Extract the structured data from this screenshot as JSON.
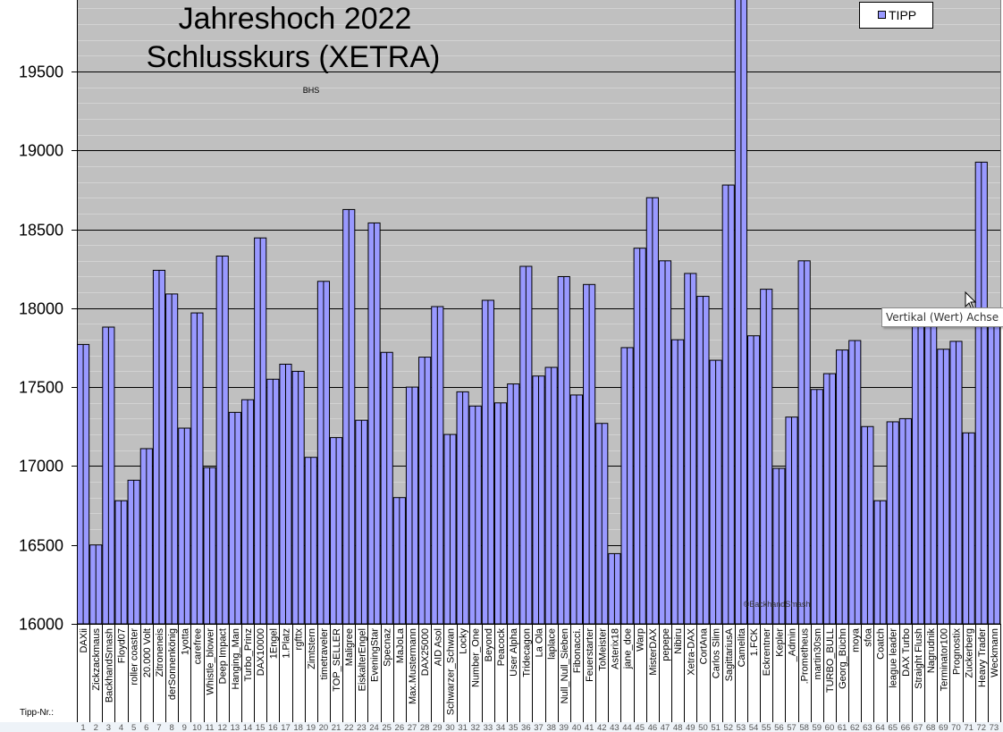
{
  "chart_data": {
    "type": "bar",
    "title": [
      "Jahreshoch 2022",
      "Schlusskurs (XETRA)"
    ],
    "annotation": "BHS",
    "watermark": "©BackhandSmash",
    "legend": {
      "entries": [
        "TIPP"
      ],
      "placement": "top-right"
    },
    "xlabel": "Tipp-Nr.:",
    "ylabel": "",
    "ylim": [
      16000,
      20000
    ],
    "yticks": [
      16000,
      16500,
      17000,
      17500,
      18000,
      18500,
      19000,
      19500
    ],
    "grid": true,
    "bar_color": "#9999ff",
    "plot_bg": "#c0c0c0",
    "numbers": [
      1,
      2,
      3,
      4,
      5,
      6,
      7,
      8,
      9,
      10,
      11,
      12,
      13,
      14,
      15,
      16,
      17,
      18,
      19,
      20,
      21,
      22,
      23,
      24,
      25,
      26,
      27,
      28,
      29,
      30,
      31,
      32,
      33,
      34,
      35,
      36,
      37,
      38,
      39,
      40,
      41,
      42,
      43,
      44,
      45,
      46,
      47,
      48,
      49,
      50,
      51,
      52,
      53,
      54,
      55,
      56,
      57,
      58,
      59,
      60,
      61,
      62,
      63,
      64,
      65,
      66,
      67,
      68,
      69,
      70,
      71,
      72,
      73
    ],
    "categories": [
      "DAXii",
      "Zickzackmaus",
      "BackhandSmash",
      "Floyd07",
      "roller coaster",
      "20.000 Volt",
      "Zitroneneis",
      "derSonnenkönig",
      "1yotta",
      "carefree",
      "Whistle_blower",
      "Deep Impact",
      "Hanging_Man",
      "Turbo_Prinz",
      "DAX10000",
      "1Engel",
      "1.Platz",
      "rgfttx",
      "Zimtstern",
      "timetraveler",
      "TOP_SELLER",
      "Maligree",
      "EiskalterEngel",
      "EveningStar",
      "Specnaz",
      "MaJoLa",
      "Max.Mustermann",
      "DAX25000",
      "AID Asol",
      "Schwarzer_Schwan",
      "Locky",
      "Number_One",
      "Beyond",
      "Peacock",
      "User Alpha",
      "Tridecagon",
      "La Ola",
      "laplace",
      "Null_Null_Sieben",
      "Fibonacci.",
      "Feuerstarter",
      "ToMeister",
      "Asterix18",
      "jane_doe",
      "Warp",
      "MisterDAX",
      "pepepe",
      "Nibiru",
      "Xetra-DAX",
      "CortAna",
      "Carlos Slim",
      "SagittariusA",
      "Camelita",
      "1.FCK",
      "Eckrentner",
      "Kepler",
      "_Admin",
      ".Prometheus",
      "martin30sm",
      "TURBO_BULL",
      "Georg_Büchn",
      "moya",
      "sfoa",
      "Coatch",
      "league leader",
      "DAX Turbo",
      "Straight Flush",
      "Nagrudnik",
      "Terminator100",
      "Prognostix",
      "Zuckerberg",
      "Heavy Trader",
      "Weckmann"
    ],
    "series": [
      {
        "name": "TIPP",
        "values": [
          17770,
          16500,
          17880,
          16780,
          16910,
          17110,
          18240,
          18090,
          17240,
          17970,
          16990,
          18330,
          17340,
          17420,
          18445,
          17550,
          17645,
          17600,
          17055,
          18170,
          17180,
          18625,
          17290,
          18540,
          17720,
          16800,
          17500,
          17690,
          18010,
          17200,
          17470,
          17380,
          18050,
          17400,
          17520,
          18265,
          17570,
          17625,
          18200,
          17450,
          18150,
          17270,
          16445,
          17750,
          18380,
          18700,
          18300,
          17800,
          18220,
          18075,
          17670,
          18780,
          20000,
          17825,
          18120,
          16985,
          17310,
          18300,
          17485,
          17585,
          17735,
          17795,
          17250,
          16780,
          17280,
          17300,
          17900,
          17900,
          17740,
          17790,
          17210,
          18925,
          17900
        ]
      }
    ]
  },
  "tooltip": "Vertikal (Wert) Achse Hilf"
}
